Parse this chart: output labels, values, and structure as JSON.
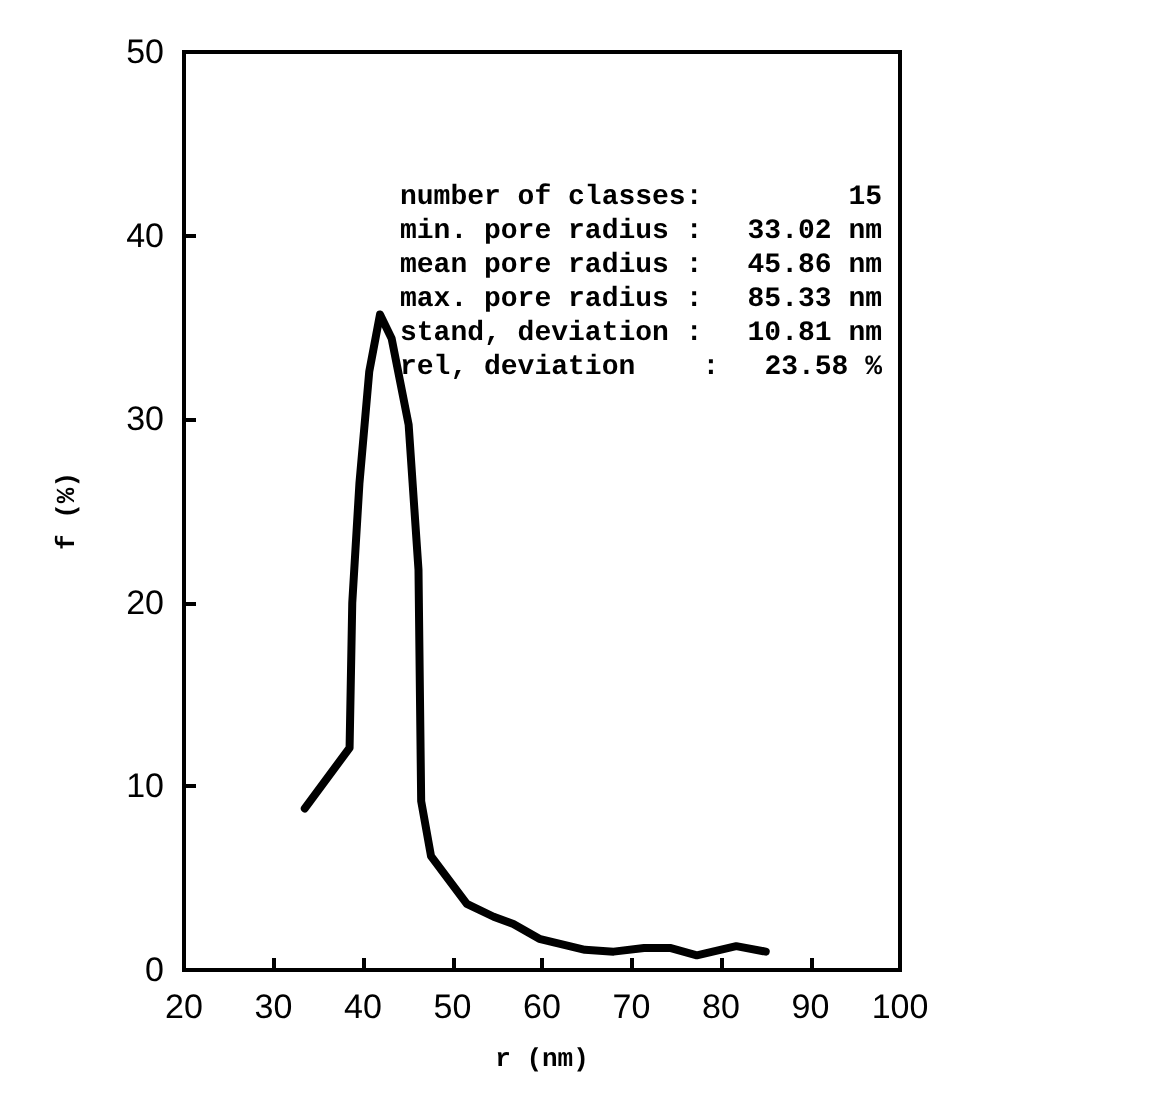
{
  "chart_data": {
    "type": "line",
    "xlabel": "r (nm)",
    "ylabel": "f (%)",
    "xlim": [
      20,
      100
    ],
    "xticks": [
      20,
      30,
      40,
      50,
      60,
      70,
      80,
      90,
      100
    ],
    "ylim": [
      0,
      50
    ],
    "yticks": [
      0,
      10,
      20,
      30,
      40,
      50
    ],
    "grid": false,
    "marker": "none",
    "line_style": "solid",
    "series": [
      {
        "color": "#000000",
        "x": [
          33.5,
          38.5,
          38.8,
          39.6,
          40.7,
          41.9,
          43.2,
          45.1,
          46.2,
          46.5,
          47.6,
          51.6,
          54.6,
          56.8,
          59.7,
          64.8,
          68,
          71.4,
          74.3,
          77.3,
          81.7,
          85
        ],
        "values": [
          8.8,
          12.1,
          20,
          26.5,
          32.6,
          35.7,
          34.4,
          29.7,
          21.8,
          9.2,
          6.2,
          3.6,
          2.9,
          2.5,
          1.7,
          1.1,
          1.0,
          1.2,
          1.2,
          0.8,
          1.3,
          1.0
        ]
      }
    ],
    "annotations": [
      "number of classes:",
      "15",
      "min. pore radius :",
      "33.02 nm",
      "mean pore radius :",
      "45.86 nm",
      "max. pore radius :",
      "85.33 nm",
      "stand, deviation :",
      "10.81 nm",
      "rel, deviation    :",
      "23.58 %"
    ]
  }
}
